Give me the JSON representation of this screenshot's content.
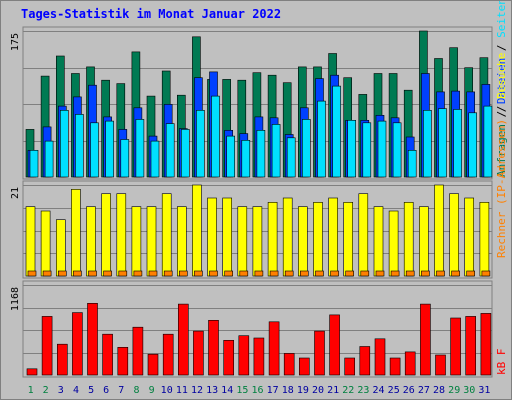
{
  "chart_data": {
    "type": "bar",
    "title": "Tages-Statistik im Monat Januar 2022",
    "days": [
      "1",
      "2",
      "3",
      "4",
      "5",
      "6",
      "7",
      "8",
      "9",
      "10",
      "11",
      "12",
      "13",
      "14",
      "15",
      "16",
      "17",
      "18",
      "19",
      "20",
      "21",
      "22",
      "23",
      "24",
      "25",
      "26",
      "27",
      "28",
      "29",
      "30",
      "31"
    ],
    "weekend_days": [
      "1",
      "2",
      "8",
      "9",
      "15",
      "16",
      "22",
      "23",
      "29",
      "30"
    ],
    "colors": {
      "background": "#c0c0c0",
      "grid": "#808080",
      "anfragen": "#007a53",
      "dateien": "#0040ff",
      "seiten": "#00e0ff",
      "besuche": "#ffff00",
      "rechner": "#ff8000",
      "kb": "#ff0000",
      "weekday_tick": "#0000a0",
      "weekend_tick": "#008040"
    },
    "panels": [
      {
        "name": "requests",
        "ytick_label": "175",
        "ylim": [
          0,
          175
        ],
        "series": [
          {
            "key": "anfragen",
            "values": [
              57,
              121,
              145,
              124,
              132,
              116,
              112,
              150,
              97,
              127,
              98,
              168,
              117,
              117,
              116,
              125,
              122,
              113,
              132,
              132,
              148,
              119,
              99,
              124,
              124,
              104,
              175,
              142,
              155,
              131,
              143
            ]
          },
          {
            "key": "dateien",
            "values": [
              32,
              60,
              85,
              96,
              110,
              72,
              57,
              83,
              49,
              87,
              58,
              119,
              126,
              56,
              52,
              72,
              71,
              51,
              83,
              118,
              122,
              68,
              68,
              74,
              71,
              48,
              124,
              102,
              103,
              102,
              111
            ]
          },
          {
            "key": "seiten",
            "values": [
              32,
              43,
              80,
              75,
              65,
              67,
              45,
              69,
              43,
              64,
              57,
              80,
              97,
              49,
              44,
              56,
              63,
              47,
              69,
              91,
              109,
              68,
              65,
              67,
              65,
              32,
              80,
              82,
              81,
              77,
              85
            ]
          }
        ]
      },
      {
        "name": "visits",
        "ytick_label": "21",
        "ylim": [
          0,
          21
        ],
        "series": [
          {
            "key": "besuche",
            "values": [
              16,
              15,
              13,
              20,
              16,
              19,
              19,
              16,
              16,
              19,
              16,
              21,
              18,
              18,
              16,
              16,
              17,
              18,
              16,
              17,
              18,
              17,
              19,
              16,
              15,
              17,
              16,
              21,
              19,
              18,
              17
            ]
          },
          {
            "key": "rechner",
            "values": [
              1,
              1,
              1,
              1,
              1,
              1,
              1,
              1,
              1,
              1,
              1,
              1,
              1,
              1,
              1,
              1,
              1,
              1,
              1,
              1,
              1,
              1,
              1,
              1,
              1,
              1,
              1,
              1,
              1,
              1,
              1
            ]
          }
        ]
      },
      {
        "name": "traffic",
        "ytick_label": "1168",
        "ylim": [
          0,
          1168
        ],
        "series": [
          {
            "key": "kb",
            "values": [
              80,
              760,
              400,
              810,
              930,
              530,
              360,
              620,
              270,
              530,
              920,
              570,
              710,
              450,
              510,
              480,
              690,
              280,
              220,
              570,
              780,
              220,
              370,
              470,
              220,
              300,
              920,
              260,
              740,
              760,
              800
            ]
          }
        ]
      }
    ],
    "right_labels": {
      "top": [
        {
          "text": "Anfragen",
          "key": "anfragen"
        },
        {
          "text": " / ",
          "key": "separator"
        },
        {
          "text": "Dateien",
          "key": "dateien"
        },
        {
          "text": " / ",
          "key": "separator"
        },
        {
          "text": "Seiten",
          "key": "seiten"
        }
      ],
      "middle": [
        {
          "text": "Rechner (IP-Adressen)",
          "key": "rechner"
        },
        {
          "text": " / ",
          "key": "separator"
        },
        {
          "text": "Besuche",
          "key": "besuche"
        }
      ],
      "bottom": [
        {
          "text": "kB F",
          "key": "kb"
        }
      ]
    }
  }
}
